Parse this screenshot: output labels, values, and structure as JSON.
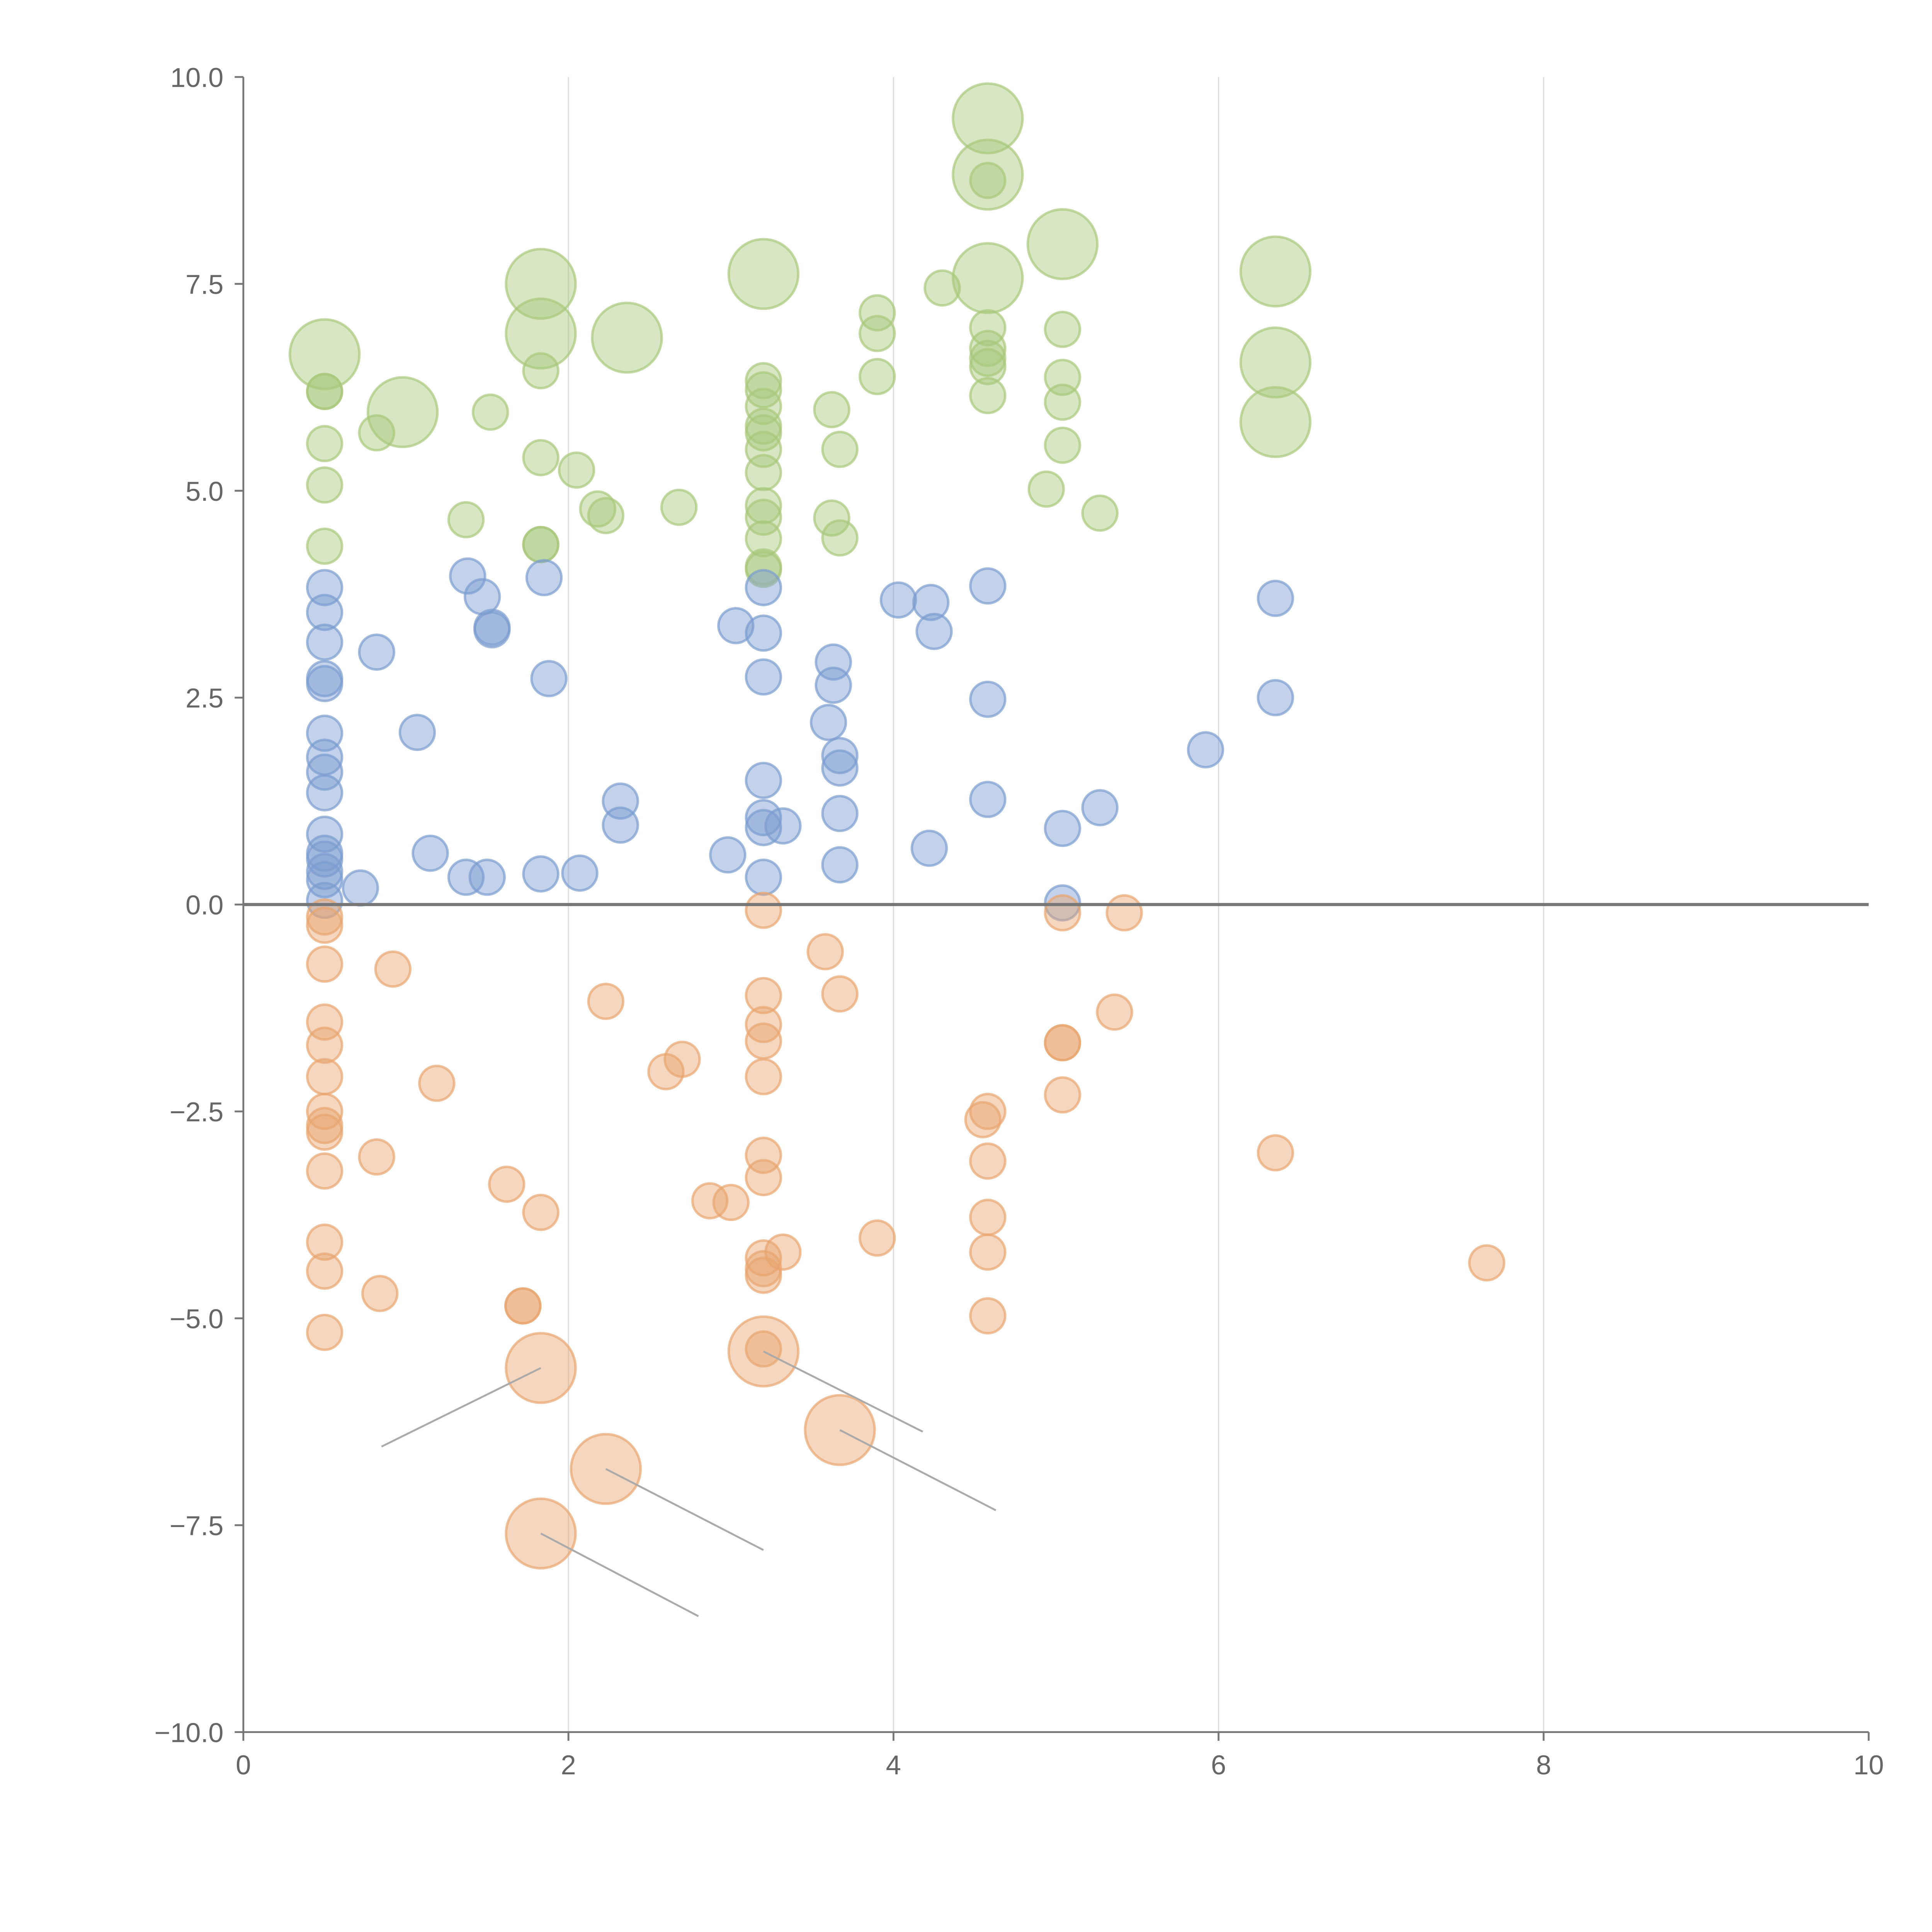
{
  "chart_data": {
    "type": "scatter",
    "title": "",
    "xlabel": "",
    "ylabel": "",
    "xlim": [
      0,
      10
    ],
    "ylim": [
      -10,
      10
    ],
    "grid": "vertical",
    "x_ticks": [
      0,
      2,
      4,
      6,
      8,
      10
    ],
    "x_tick_labels": [
      "0",
      "2",
      "4",
      "6",
      "8",
      "10"
    ],
    "y_ticks": [
      -10,
      -7.5,
      -5,
      -2.5,
      0,
      2.5,
      5,
      7.5,
      10
    ],
    "y_tick_labels": [
      "−10.0",
      "−7.5",
      "−5.0",
      "−2.5",
      "0.0",
      "2.5",
      "5.0",
      "7.5",
      "10.0"
    ],
    "point_format": "[x, y, size]",
    "series": [
      {
        "name": "green",
        "color": "#a9c77a",
        "points": [
          [
            0.5,
            6.65,
            2
          ],
          [
            0.5,
            6.2,
            1
          ],
          [
            0.5,
            6.2,
            1
          ],
          [
            0.5,
            5.57,
            1
          ],
          [
            0.5,
            5.07,
            1
          ],
          [
            0.5,
            4.33,
            1
          ],
          [
            0.82,
            5.7,
            1
          ],
          [
            0.98,
            5.95,
            2
          ],
          [
            1.52,
            5.95,
            1
          ],
          [
            1.37,
            4.65,
            1
          ],
          [
            1.83,
            7.5,
            2
          ],
          [
            1.83,
            6.9,
            2
          ],
          [
            1.83,
            6.45,
            1
          ],
          [
            1.83,
            5.4,
            1
          ],
          [
            1.83,
            4.35,
            1
          ],
          [
            1.83,
            4.35,
            1
          ],
          [
            2.05,
            5.25,
            1
          ],
          [
            2.18,
            4.78,
            1
          ],
          [
            2.23,
            4.7,
            1
          ],
          [
            2.36,
            6.85,
            2
          ],
          [
            2.68,
            4.8,
            1
          ],
          [
            3.2,
            7.62,
            2
          ],
          [
            3.2,
            6.33,
            1
          ],
          [
            3.2,
            6.22,
            1
          ],
          [
            3.2,
            6.02,
            1
          ],
          [
            3.2,
            5.78,
            1
          ],
          [
            3.2,
            5.7,
            1
          ],
          [
            3.2,
            5.5,
            1
          ],
          [
            3.2,
            5.22,
            1
          ],
          [
            3.2,
            4.82,
            1
          ],
          [
            3.2,
            4.68,
            1
          ],
          [
            3.2,
            4.42,
            1
          ],
          [
            3.2,
            4.08,
            1
          ],
          [
            3.2,
            4.05,
            1
          ],
          [
            3.62,
            5.98,
            1
          ],
          [
            3.67,
            5.5,
            1
          ],
          [
            3.62,
            4.67,
            1
          ],
          [
            3.67,
            4.43,
            1
          ],
          [
            3.9,
            7.15,
            1
          ],
          [
            3.9,
            6.9,
            1
          ],
          [
            3.9,
            6.38,
            1
          ],
          [
            4.3,
            7.45,
            1
          ],
          [
            4.58,
            9.5,
            2
          ],
          [
            4.58,
            8.82,
            2
          ],
          [
            4.58,
            8.75,
            1
          ],
          [
            4.58,
            7.57,
            2
          ],
          [
            4.58,
            6.97,
            1
          ],
          [
            4.58,
            6.72,
            1
          ],
          [
            4.58,
            6.6,
            1
          ],
          [
            4.58,
            6.5,
            1
          ],
          [
            4.58,
            6.15,
            1
          ],
          [
            5.04,
            7.98,
            2
          ],
          [
            5.04,
            6.95,
            1
          ],
          [
            5.04,
            6.37,
            1
          ],
          [
            5.04,
            6.07,
            1
          ],
          [
            5.04,
            5.55,
            1
          ],
          [
            4.94,
            5.02,
            1
          ],
          [
            5.27,
            4.73,
            1
          ],
          [
            6.35,
            7.65,
            2
          ],
          [
            6.35,
            6.55,
            2
          ],
          [
            6.35,
            5.83,
            2
          ]
        ]
      },
      {
        "name": "blue",
        "color": "#7a9cd0",
        "points": [
          [
            0.5,
            3.83,
            1
          ],
          [
            0.5,
            3.53,
            1
          ],
          [
            0.5,
            3.17,
            1
          ],
          [
            0.5,
            2.73,
            1
          ],
          [
            0.5,
            2.67,
            1
          ],
          [
            0.5,
            2.07,
            1
          ],
          [
            0.5,
            1.78,
            1
          ],
          [
            0.5,
            1.6,
            1
          ],
          [
            0.5,
            1.35,
            1
          ],
          [
            0.5,
            0.85,
            1
          ],
          [
            0.5,
            0.62,
            1
          ],
          [
            0.5,
            0.55,
            1
          ],
          [
            0.5,
            0.4,
            1
          ],
          [
            0.5,
            0.3,
            1
          ],
          [
            0.5,
            0.05,
            1
          ],
          [
            0.72,
            0.2,
            1
          ],
          [
            0.82,
            3.05,
            1
          ],
          [
            1.07,
            2.08,
            1
          ],
          [
            1.15,
            0.62,
            1
          ],
          [
            1.38,
            3.97,
            1
          ],
          [
            1.47,
            3.72,
            1
          ],
          [
            1.53,
            3.32,
            1
          ],
          [
            1.53,
            3.35,
            1
          ],
          [
            1.37,
            0.33,
            1
          ],
          [
            1.5,
            0.33,
            1
          ],
          [
            1.83,
            0.37,
            1
          ],
          [
            1.85,
            3.95,
            1
          ],
          [
            1.88,
            2.73,
            1
          ],
          [
            2.07,
            0.38,
            1
          ],
          [
            2.32,
            1.25,
            1
          ],
          [
            2.32,
            0.96,
            1
          ],
          [
            2.98,
            0.6,
            1
          ],
          [
            3.03,
            3.37,
            1
          ],
          [
            3.2,
            3.83,
            1
          ],
          [
            3.2,
            3.28,
            1
          ],
          [
            3.2,
            2.75,
            1
          ],
          [
            3.2,
            1.5,
            1
          ],
          [
            3.2,
            1.05,
            1
          ],
          [
            3.2,
            0.93,
            1
          ],
          [
            3.32,
            0.95,
            1
          ],
          [
            3.2,
            0.33,
            1
          ],
          [
            3.63,
            2.93,
            1
          ],
          [
            3.63,
            2.65,
            1
          ],
          [
            3.6,
            2.2,
            1
          ],
          [
            3.67,
            1.8,
            1
          ],
          [
            3.67,
            1.65,
            1
          ],
          [
            3.67,
            1.1,
            1
          ],
          [
            3.67,
            0.48,
            1
          ],
          [
            4.03,
            3.68,
            1
          ],
          [
            4.23,
            3.65,
            1
          ],
          [
            4.25,
            3.3,
            1
          ],
          [
            4.22,
            0.68,
            1
          ],
          [
            4.58,
            3.85,
            1
          ],
          [
            4.58,
            2.48,
            1
          ],
          [
            4.58,
            1.27,
            1
          ],
          [
            5.04,
            0.92,
            1
          ],
          [
            5.04,
            0.02,
            1
          ],
          [
            5.27,
            1.17,
            1
          ],
          [
            5.92,
            1.87,
            1
          ],
          [
            6.35,
            3.7,
            1
          ],
          [
            6.35,
            2.5,
            1
          ]
        ]
      },
      {
        "name": "orange",
        "color": "#e8a56f",
        "points": [
          [
            0.5,
            -0.15,
            1
          ],
          [
            0.5,
            -0.25,
            1
          ],
          [
            0.5,
            -0.72,
            1
          ],
          [
            0.5,
            -1.42,
            1
          ],
          [
            0.5,
            -1.7,
            1
          ],
          [
            0.5,
            -2.08,
            1
          ],
          [
            0.5,
            -2.5,
            1
          ],
          [
            0.5,
            -2.67,
            1
          ],
          [
            0.5,
            -2.75,
            1
          ],
          [
            0.5,
            -3.22,
            1
          ],
          [
            0.5,
            -4.08,
            1
          ],
          [
            0.5,
            -4.43,
            1
          ],
          [
            0.5,
            -5.17,
            1
          ],
          [
            0.92,
            -0.78,
            1
          ],
          [
            0.82,
            -3.05,
            1
          ],
          [
            0.84,
            -4.7,
            1
          ],
          [
            1.19,
            -2.16,
            1
          ],
          [
            1.62,
            -3.38,
            1
          ],
          [
            1.72,
            -4.85,
            1
          ],
          [
            1.72,
            -4.85,
            1
          ],
          [
            1.83,
            -3.72,
            1
          ],
          [
            1.83,
            -5.6,
            2
          ],
          [
            1.83,
            -7.6,
            2
          ],
          [
            2.23,
            -1.17,
            1
          ],
          [
            2.23,
            -6.82,
            2
          ],
          [
            2.6,
            -2.02,
            1
          ],
          [
            2.7,
            -1.87,
            1
          ],
          [
            2.87,
            -3.58,
            1
          ],
          [
            3.0,
            -3.6,
            1
          ],
          [
            3.2,
            -0.07,
            1
          ],
          [
            3.2,
            -1.1,
            1
          ],
          [
            3.2,
            -1.45,
            1
          ],
          [
            3.2,
            -1.65,
            1
          ],
          [
            3.2,
            -2.08,
            1
          ],
          [
            3.2,
            -3.03,
            1
          ],
          [
            3.2,
            -3.3,
            1
          ],
          [
            3.2,
            -4.27,
            1
          ],
          [
            3.2,
            -4.48,
            1
          ],
          [
            3.32,
            -4.2,
            1
          ],
          [
            3.2,
            -4.4,
            1
          ],
          [
            3.2,
            -5.37,
            1
          ],
          [
            3.2,
            -5.4,
            2
          ],
          [
            3.58,
            -0.57,
            1
          ],
          [
            3.67,
            -1.08,
            1
          ],
          [
            3.67,
            -6.35,
            2
          ],
          [
            3.9,
            -4.03,
            1
          ],
          [
            4.58,
            -2.5,
            1
          ],
          [
            4.55,
            -2.6,
            1
          ],
          [
            4.58,
            -3.1,
            1
          ],
          [
            4.58,
            -3.78,
            1
          ],
          [
            4.58,
            -4.2,
            1
          ],
          [
            4.58,
            -4.97,
            1
          ],
          [
            5.04,
            -0.1,
            1
          ],
          [
            5.04,
            -1.67,
            1
          ],
          [
            5.04,
            -1.67,
            1
          ],
          [
            5.04,
            -2.3,
            1
          ],
          [
            5.36,
            -1.3,
            1
          ],
          [
            5.42,
            -0.1,
            1
          ],
          [
            6.35,
            -3.0,
            1
          ],
          [
            7.65,
            -4.33,
            1
          ]
        ]
      }
    ],
    "leader_lines": [
      [
        [
          1.83,
          -5.6
        ],
        [
          0.85,
          -6.55
        ]
      ],
      [
        [
          2.23,
          -6.82
        ],
        [
          3.2,
          -7.8
        ]
      ],
      [
        [
          1.83,
          -7.6
        ],
        [
          2.8,
          -8.6
        ]
      ],
      [
        [
          3.2,
          -5.4
        ],
        [
          4.18,
          -6.37
        ]
      ],
      [
        [
          3.67,
          -6.35
        ],
        [
          4.63,
          -7.32
        ]
      ]
    ]
  }
}
